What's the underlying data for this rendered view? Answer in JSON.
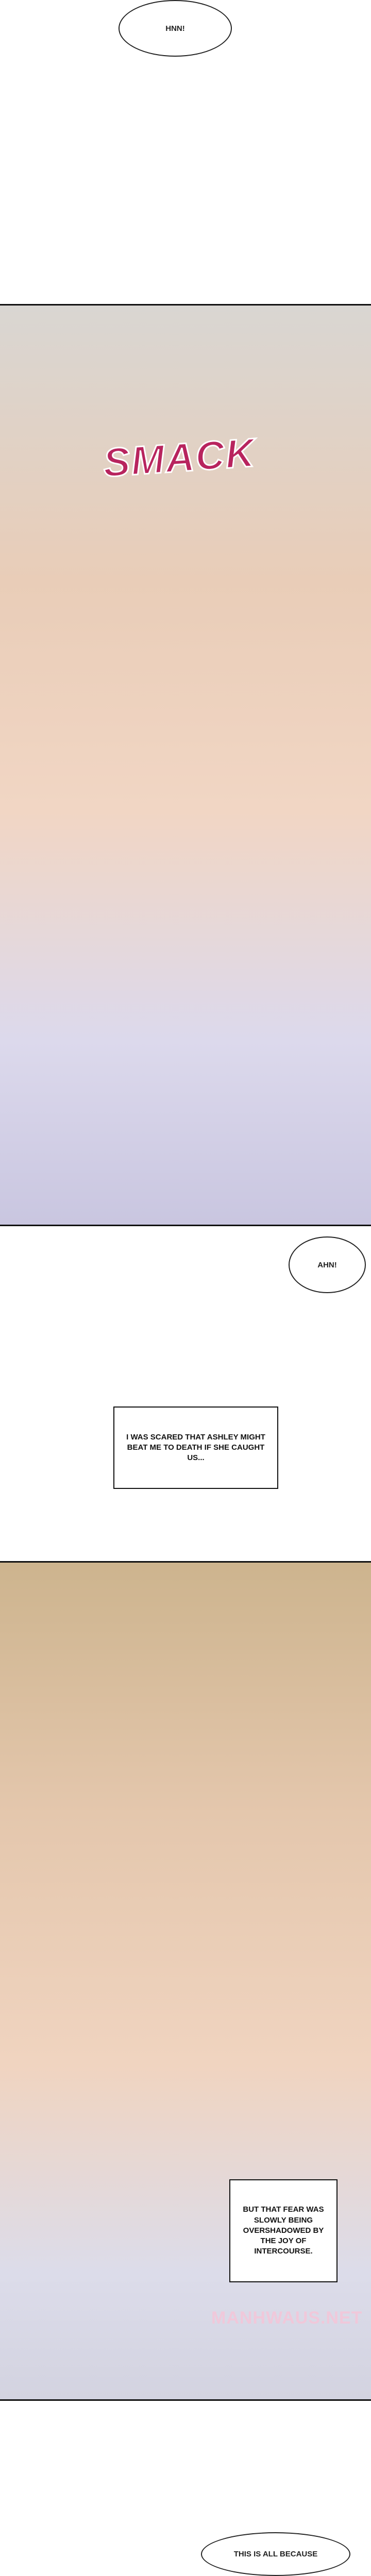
{
  "bubbles": {
    "hnn": "HNN!",
    "ahn": "AHN!",
    "bottom": "THIS IS ALL BECAUSE"
  },
  "panel1": {
    "sfx": "SMACK"
  },
  "narration": {
    "box1": "I WAS SCARED THAT ASHLEY MIGHT BEAT ME TO DEATH IF SHE CAUGHT US...",
    "box2": "BUT THAT FEAR WAS SLOWLY BEING OVERSHADOWED BY THE JOY OF INTERCOURSE."
  },
  "watermark": "MANHWAUS.NET",
  "colors": {
    "sfx": "#b8245e",
    "watermark": "#f0c8da"
  }
}
